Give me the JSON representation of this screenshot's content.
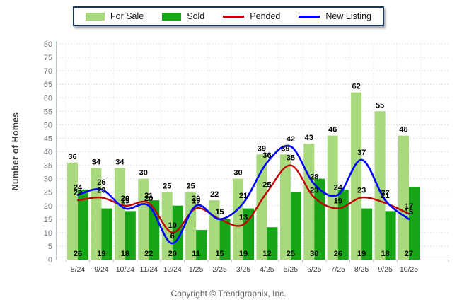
{
  "y_axis": {
    "title": "Number of Homes",
    "min": 0,
    "max": 80,
    "step": 5
  },
  "x_axis": {
    "labels": [
      "8/24",
      "9/24",
      "10/24",
      "11/24",
      "12/24",
      "1/25",
      "2/25",
      "3/25",
      "4/25",
      "5/25",
      "6/25",
      "7/25",
      "8/25",
      "9/25",
      "10/25"
    ]
  },
  "footer": {
    "copyright": "Copyright © Trendgraphix, Inc."
  },
  "colors": {
    "for_sale": "#a9d97d",
    "sold": "#16a516",
    "pended": "#c00000",
    "new_listing": "#0000ff",
    "legend_border": "#17365d",
    "grid": "#dcdcdc",
    "axis_line": "#b0c4de",
    "baseline": "#c0c0c0",
    "y_tick_text": "#7a7a7a",
    "x_tick_text": "#404040",
    "data_label": "#000000"
  },
  "chart_data": {
    "type": "bar+line",
    "title": "",
    "xlabel": "",
    "ylabel": "Number of Homes",
    "ylim": [
      0,
      80
    ],
    "ystep": 5,
    "grid": true,
    "legend_position": "top-center",
    "categories": [
      "8/24",
      "9/24",
      "10/24",
      "11/24",
      "12/24",
      "1/25",
      "2/25",
      "3/25",
      "4/25",
      "5/25",
      "6/25",
      "7/25",
      "8/25",
      "9/25",
      "10/25"
    ],
    "series": [
      {
        "name": "For Sale",
        "type": "bar",
        "color": "#a9d97d",
        "values": [
          36,
          34,
          34,
          30,
          25,
          25,
          22,
          30,
          39,
          39,
          43,
          46,
          62,
          55,
          46
        ]
      },
      {
        "name": "Sold",
        "type": "bar",
        "color": "#16a516",
        "values": [
          26,
          19,
          18,
          22,
          20,
          11,
          15,
          19,
          12,
          25,
          30,
          26,
          19,
          18,
          27
        ]
      },
      {
        "name": "Pended",
        "type": "line",
        "color": "#c00000",
        "values": [
          22,
          23,
          20,
          21,
          10,
          19,
          15,
          13,
          25,
          35,
          23,
          19,
          23,
          21,
          17
        ]
      },
      {
        "name": "New Listing",
        "type": "line",
        "color": "#0000ff",
        "values": [
          24,
          26,
          19,
          20,
          6,
          20,
          15,
          21,
          36,
          42,
          28,
          24,
          37,
          22,
          15
        ]
      }
    ]
  }
}
